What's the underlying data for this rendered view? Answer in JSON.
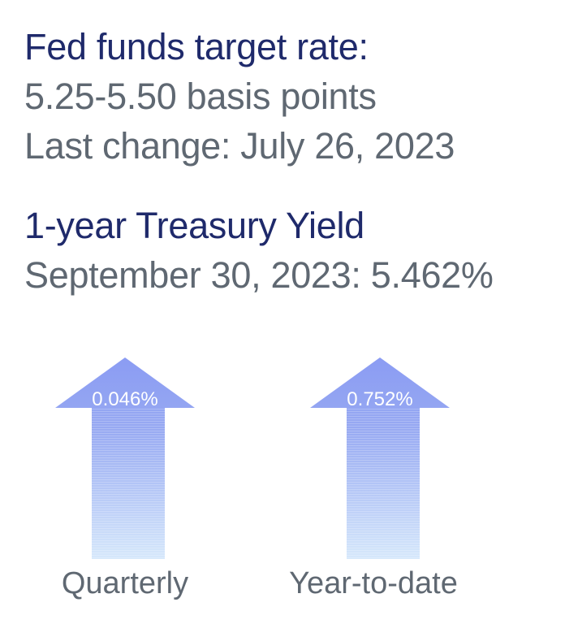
{
  "fed_funds": {
    "heading": "Fed funds target rate:",
    "rate": "5.25-5.50 basis points",
    "last_change": "Last change: July 26, 2023"
  },
  "treasury": {
    "heading": "1-year Treasury Yield",
    "yield_line": "September 30, 2023: 5.462%"
  },
  "arrows": [
    {
      "value": "0.046%",
      "caption": "Quarterly",
      "direction": "up"
    },
    {
      "value": "0.752%",
      "caption": "Year-to-date",
      "direction": "up"
    }
  ],
  "colors": {
    "heading": "#1f2a6b",
    "body_text": "#5f6872",
    "arrow_top": "#8b9cf3",
    "arrow_bottom": "#d6e8fb"
  }
}
